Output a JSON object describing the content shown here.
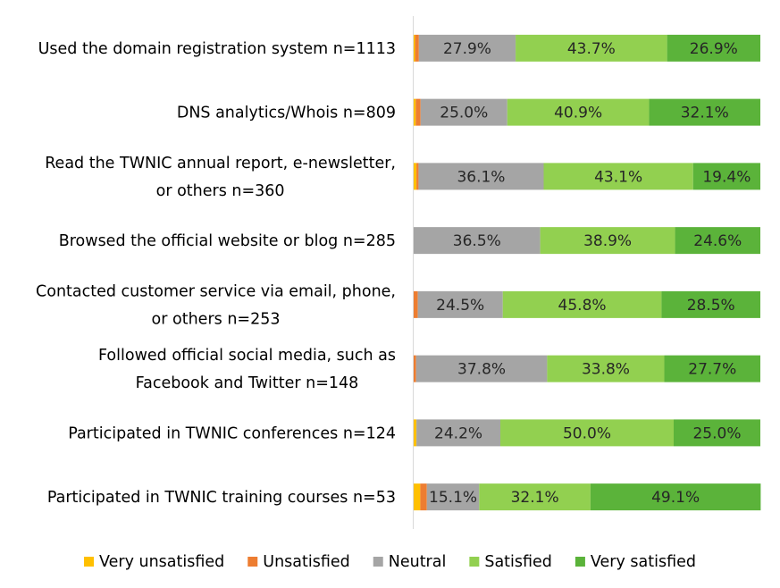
{
  "chart_data": {
    "type": "bar",
    "orientation": "horizontal",
    "stacked": true,
    "xlim": [
      0,
      100
    ],
    "legend_position": "bottom",
    "categories": [
      [
        "Used the domain registration system n=1113"
      ],
      [
        "DNS analytics/Whois n=809"
      ],
      [
        "Read the TWNIC annual report, e-newsletter,",
        "or others n=360"
      ],
      [
        "Browsed the official website or blog n=285"
      ],
      [
        "Contacted customer service via email, phone,",
        "or others n=253"
      ],
      [
        "Followed official social media, such as",
        "Facebook and Twitter n=148"
      ],
      [
        "Participated in TWNIC conferences n=124"
      ],
      [
        "Participated in TWNIC training courses n=53"
      ]
    ],
    "series": [
      {
        "name": "Very unsatisfied",
        "color": "#FFC000",
        "values": [
          0.4,
          0.6,
          0.8,
          0.0,
          0.0,
          0.0,
          0.8,
          1.9
        ],
        "show_labels": false
      },
      {
        "name": "Unsatisfied",
        "color": "#ED7D31",
        "values": [
          1.1,
          1.4,
          0.6,
          0.0,
          1.2,
          0.7,
          0.0,
          1.9
        ],
        "show_labels": false
      },
      {
        "name": "Neutral",
        "color": "#A5A5A5",
        "values": [
          27.9,
          25.0,
          36.1,
          36.5,
          24.5,
          37.8,
          24.2,
          15.1
        ],
        "labels": [
          "27.9%",
          "25.0%",
          "36.1%",
          "36.5%",
          "24.5%",
          "37.8%",
          "24.2%",
          "15.1%"
        ],
        "show_labels": true
      },
      {
        "name": "Satisfied",
        "color": "#92D050",
        "values": [
          43.7,
          40.9,
          43.1,
          38.9,
          45.8,
          33.8,
          50.0,
          32.1
        ],
        "labels": [
          "43.7%",
          "40.9%",
          "43.1%",
          "38.9%",
          "45.8%",
          "33.8%",
          "50.0%",
          "32.1%"
        ],
        "show_labels": true
      },
      {
        "name": "Very satisfied",
        "color": "#5BB33A",
        "values": [
          26.9,
          32.1,
          19.4,
          24.6,
          28.5,
          27.7,
          25.0,
          49.1
        ],
        "labels": [
          "26.9%",
          "32.1%",
          "19.4%",
          "24.6%",
          "28.5%",
          "27.7%",
          "25.0%",
          "49.1%"
        ],
        "show_labels": true
      }
    ]
  }
}
